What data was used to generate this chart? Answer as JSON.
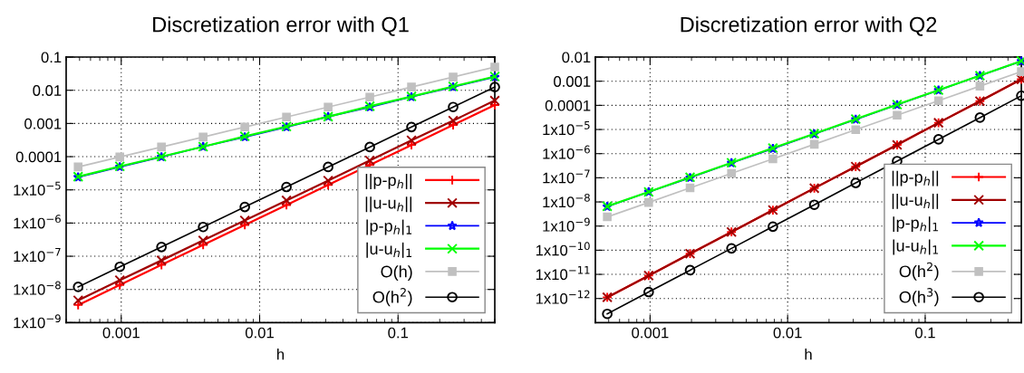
{
  "chart_data": [
    {
      "type": "line",
      "title": "Discretization error with Q1",
      "xlabel": "h",
      "log": "xy",
      "grid": true,
      "legend": "bottom right",
      "x": [
        0.00048828125,
        0.0009765625,
        0.001953125,
        0.00390625,
        0.0078125,
        0.015625,
        0.03125,
        0.0625,
        0.125,
        0.25,
        0.5
      ],
      "xlim": [
        0.0004,
        0.5
      ],
      "xticks": [
        0.001,
        0.01,
        0.1
      ],
      "ylim": [
        1e-09,
        0.1
      ],
      "yticks": [
        {
          "value": 1e-09,
          "label": "1x10$^{−9}$"
        },
        {
          "value": 1e-08,
          "label": "1x10$^{−8}$"
        },
        {
          "value": 1e-07,
          "label": "1x10$^{−7}$"
        },
        {
          "value": 1e-06,
          "label": "1x10$^{−6}$"
        },
        {
          "value": 1e-05,
          "label": "1x10$^{−5}$"
        },
        0.0001,
        0.001,
        0.01,
        0.1
      ],
      "series": [
        {
          "name": "||p-p$_{h}$||",
          "color": "#ff0000",
          "marker": "plus",
          "values": [
            3.4e-09,
            1.37e-08,
            5.5e-08,
            2.2e-07,
            8.8e-07,
            3.5e-06,
            1.4e-05,
            5.6e-05,
            0.000225,
            0.0009,
            0.0036
          ]
        },
        {
          "name": "||u-u$_{h}$||",
          "color": "#a00000",
          "marker": "cross",
          "values": [
            4.7e-09,
            1.9e-08,
            7.5e-08,
            3e-07,
            1.2e-06,
            4.8e-06,
            1.9e-05,
            7.7e-05,
            0.00031,
            0.00122,
            0.0049
          ]
        },
        {
          "name": "|p-p$_{h}$|$_{1}$",
          "color": "#0000ff",
          "marker": "star",
          "values": [
            2.4e-05,
            4.9e-05,
            9.8e-05,
            0.0002,
            0.00039,
            0.00078,
            0.0016,
            0.0031,
            0.0063,
            0.0125,
            0.025
          ]
        },
        {
          "name": "|u-u$_{h}$|$_{1}$",
          "color": "#00ff00",
          "marker": "cross",
          "values": [
            2.5e-05,
            5.1e-05,
            0.0001,
            0.0002,
            0.00041,
            0.00081,
            0.0016,
            0.0033,
            0.0065,
            0.013,
            0.026
          ]
        },
        {
          "name": "O(h)",
          "color": "#c0c0c0",
          "marker": "square",
          "values": [
            4.9e-05,
            9.8e-05,
            0.000195,
            0.00039,
            0.00078,
            0.0015625,
            0.003125,
            0.00625,
            0.0125,
            0.025,
            0.05
          ]
        },
        {
          "name": "O(h$^{2}$)",
          "color": "#000000",
          "marker": "circle",
          "values": [
            1.19e-08,
            4.8e-08,
            1.9e-07,
            7.6e-07,
            3.05e-06,
            1.22e-05,
            4.9e-05,
            0.000195,
            0.00078,
            0.003125,
            0.0125
          ]
        }
      ]
    },
    {
      "type": "line",
      "title": "Discretization error with Q2",
      "xlabel": "h",
      "log": "xy",
      "grid": true,
      "legend": "bottom right",
      "x": [
        0.00048828125,
        0.0009765625,
        0.001953125,
        0.00390625,
        0.0078125,
        0.015625,
        0.03125,
        0.0625,
        0.125,
        0.25,
        0.5
      ],
      "xlim": [
        0.0004,
        0.5
      ],
      "xticks": [
        0.001,
        0.01,
        0.1
      ],
      "ylim": [
        1e-13,
        0.01
      ],
      "yticks": [
        {
          "value": 1e-12,
          "label": "1x10$^{−12}$"
        },
        {
          "value": 1e-11,
          "label": "1x10$^{−11}$"
        },
        {
          "value": 1e-10,
          "label": "1x10$^{−10}$"
        },
        {
          "value": 1e-09,
          "label": "1x10$^{−9}$"
        },
        {
          "value": 1e-08,
          "label": "1x10$^{−8}$"
        },
        {
          "value": 1e-07,
          "label": "1x10$^{−7}$"
        },
        {
          "value": 1e-06,
          "label": "1x10$^{−6}$"
        },
        {
          "value": 1e-05,
          "label": "1x10$^{−5}$"
        },
        0.0001,
        0.001,
        0.01
      ],
      "series": [
        {
          "name": "||p-p$_{h}$||",
          "color": "#ff0000",
          "marker": "plus",
          "values": [
            1.12e-12,
            8.9e-12,
            7.2e-11,
            5.7e-10,
            4.6e-09,
            3.7e-08,
            2.9e-07,
            2.3e-06,
            1.9e-05,
            0.00015,
            0.0012
          ]
        },
        {
          "name": "||u-u$_{h}$||",
          "color": "#a00000",
          "marker": "cross",
          "values": [
            1.12e-12,
            8.9e-12,
            7.2e-11,
            5.7e-10,
            4.6e-09,
            3.7e-08,
            2.9e-07,
            2.3e-06,
            1.9e-05,
            0.00015,
            0.0012
          ]
        },
        {
          "name": "|p-p$_{h}$|$_{1}$",
          "color": "#0000ff",
          "marker": "star",
          "values": [
            6.4e-09,
            2.6e-08,
            1e-07,
            4.1e-07,
            1.6e-06,
            6.5e-06,
            2.6e-05,
            0.000105,
            0.00042,
            0.0017,
            0.0067
          ]
        },
        {
          "name": "|u-u$_{h}$|$_{1}$",
          "color": "#00ff00",
          "marker": "cross",
          "values": [
            6.6e-09,
            2.6e-08,
            1.05e-07,
            4.2e-07,
            1.7e-06,
            6.7e-06,
            2.7e-05,
            0.000108,
            0.00043,
            0.0017,
            0.0069
          ]
        },
        {
          "name": "O(h$^{2}$)",
          "color": "#c0c0c0",
          "marker": "square",
          "values": [
            2.4e-09,
            9.5e-09,
            3.8e-08,
            1.53e-07,
            6.1e-07,
            2.44e-06,
            9.8e-06,
            3.9e-05,
            0.000156,
            0.000625,
            0.0025
          ]
        },
        {
          "name": "O(h$^{3}$)",
          "color": "#000000",
          "marker": "circle",
          "values": [
            2.3e-13,
            1.86e-12,
            1.49e-11,
            1.19e-10,
            9.5e-10,
            7.6e-09,
            6.1e-08,
            4.9e-07,
            3.9e-06,
            3.1e-05,
            0.00025
          ]
        }
      ]
    }
  ]
}
